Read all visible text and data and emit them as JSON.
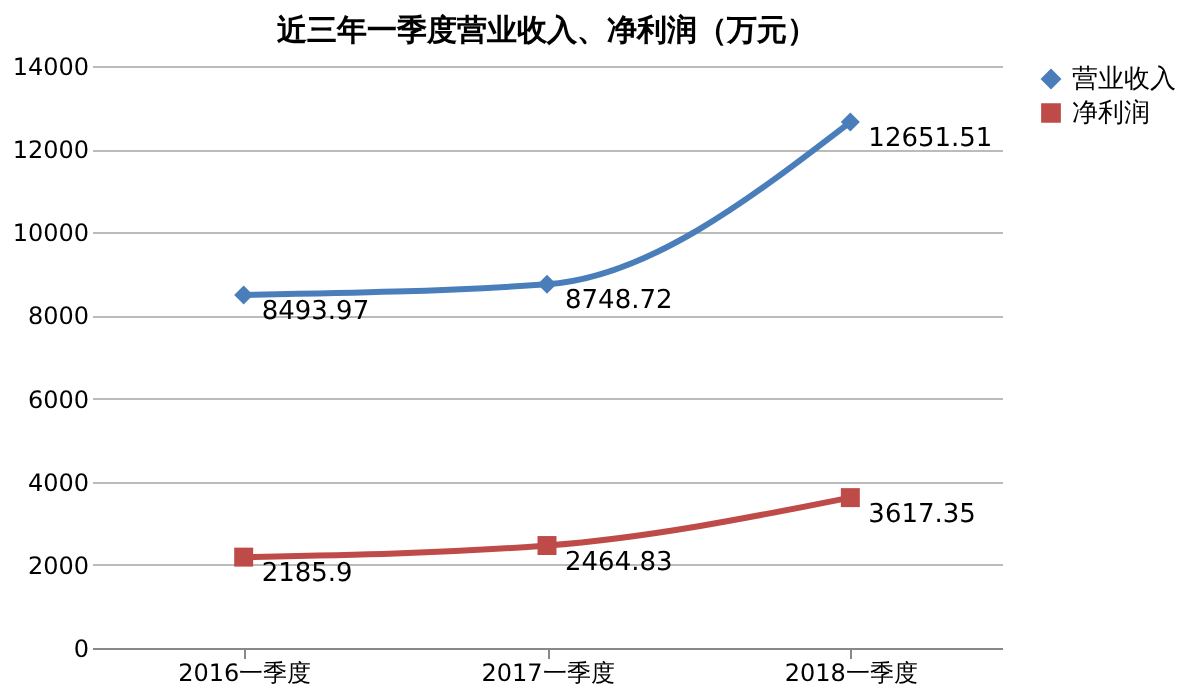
{
  "chart_data": {
    "type": "line",
    "title": "近三年一季度营业收入、净利润（万元）",
    "categories": [
      "2016一季度",
      "2017一季度",
      "2018一季度"
    ],
    "series": [
      {
        "name": "营业收入",
        "color": "#4a7ebb",
        "marker": "diamond",
        "values": [
          8493.97,
          8748.72,
          12651.51
        ]
      },
      {
        "name": "净利润",
        "color": "#be4b48",
        "marker": "square",
        "values": [
          2185.9,
          2464.83,
          3617.35
        ]
      }
    ],
    "ylim": [
      0,
      14000
    ],
    "yticks": [
      0,
      2000,
      4000,
      6000,
      8000,
      10000,
      12000,
      14000
    ],
    "grid": "y",
    "legend": "right",
    "data_labels": true,
    "line_style": "solid"
  }
}
